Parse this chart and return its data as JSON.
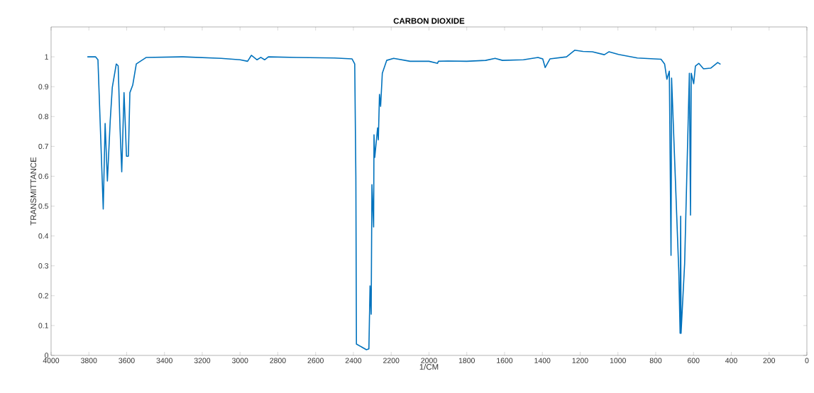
{
  "chart_data": {
    "type": "line",
    "title": "CARBON DIOXIDE",
    "xlabel": "1/CM",
    "ylabel": "TRANSMITTANCE",
    "line_style": "solid",
    "marker": "none",
    "grid": false,
    "xlim": [
      4000,
      0
    ],
    "ylim": [
      0,
      1.1
    ],
    "xticks": [
      4000,
      3800,
      3600,
      3400,
      3200,
      3000,
      2800,
      2600,
      2400,
      2200,
      2000,
      1800,
      1600,
      1400,
      1200,
      1000,
      800,
      600,
      400,
      200,
      0
    ],
    "yticks": [
      0,
      0.1,
      0.2,
      0.3,
      0.4,
      0.5,
      0.6,
      0.7,
      0.8,
      0.9,
      1
    ],
    "series": [
      {
        "color": "#0072bd",
        "x": [
          3808,
          3765,
          3752,
          3724,
          3714,
          3702,
          3687,
          3676,
          3655,
          3645,
          3635,
          3626,
          3614,
          3608,
          3601,
          3591,
          3583,
          3568,
          3549,
          3496,
          3300,
          3100,
          3000,
          2960,
          2940,
          2910,
          2890,
          2870,
          2850,
          2700,
          2500,
          2407,
          2393,
          2387,
          2384,
          2331,
          2318,
          2312,
          2306,
          2302,
          2293,
          2291,
          2287,
          2272,
          2268,
          2262,
          2256,
          2247,
          2224,
          2187,
          2100,
          2000,
          1955,
          1950,
          1900,
          1800,
          1700,
          1650,
          1611,
          1500,
          1423,
          1398,
          1385,
          1360,
          1272,
          1229,
          1185,
          1135,
          1072,
          1047,
          997,
          897,
          772,
          753,
          741,
          728,
          719,
          716,
          678,
          671,
          668,
          666,
          647,
          622,
          616,
          612,
          599,
          590,
          572,
          547,
          509,
          472,
          457
        ],
        "values": [
          1.0,
          1.0,
          0.99,
          0.49,
          0.777,
          0.584,
          0.786,
          0.898,
          0.976,
          0.97,
          0.76,
          0.615,
          0.88,
          0.786,
          0.667,
          0.667,
          0.88,
          0.905,
          0.976,
          0.998,
          1.0,
          0.995,
          0.99,
          0.985,
          1.005,
          0.99,
          0.998,
          0.99,
          1.0,
          0.998,
          0.996,
          0.993,
          0.976,
          0.596,
          0.038,
          0.019,
          0.022,
          0.233,
          0.138,
          0.572,
          0.43,
          0.739,
          0.663,
          0.762,
          0.722,
          0.874,
          0.834,
          0.945,
          0.988,
          0.995,
          0.985,
          0.985,
          0.978,
          0.985,
          0.986,
          0.985,
          0.988,
          0.995,
          0.988,
          0.99,
          0.998,
          0.993,
          0.964,
          0.993,
          1.0,
          1.022,
          1.018,
          1.017,
          1.007,
          1.017,
          1.008,
          0.996,
          0.992,
          0.976,
          0.925,
          0.952,
          0.335,
          0.929,
          0.283,
          0.074,
          0.466,
          0.074,
          0.307,
          0.945,
          0.47,
          0.945,
          0.91,
          0.969,
          0.978,
          0.96,
          0.962,
          0.981,
          0.975
        ]
      }
    ]
  }
}
